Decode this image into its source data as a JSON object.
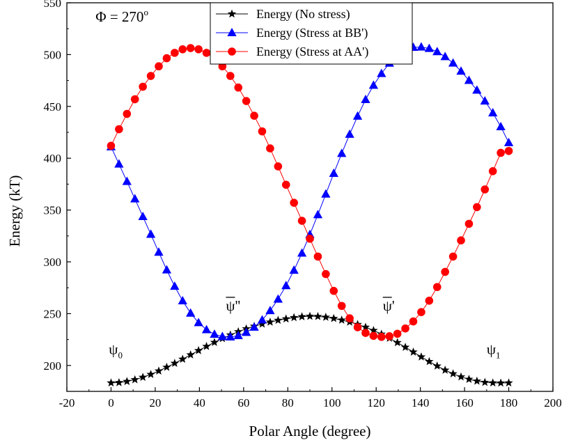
{
  "chart_data": {
    "type": "line",
    "title": "",
    "xlabel": "Polar Angle (degree)",
    "ylabel": "Energy (kT)",
    "xlim": [
      -20,
      200
    ],
    "ylim": [
      175,
      550
    ],
    "xticks": [
      -20,
      0,
      20,
      40,
      60,
      80,
      100,
      120,
      140,
      160,
      180,
      200
    ],
    "yticks": [
      200,
      250,
      300,
      350,
      400,
      450,
      500,
      550
    ],
    "legend_position": "top-center",
    "series": [
      {
        "name": "Energy (No stress)",
        "marker": "star",
        "color": "#000000",
        "x": [
          0,
          3.6,
          7.2,
          10.8,
          14.4,
          18,
          21.6,
          25.2,
          28.8,
          32.4,
          36,
          39.6,
          43.2,
          46.8,
          50.4,
          54,
          57.6,
          61.2,
          64.8,
          68.4,
          72,
          75.6,
          79.2,
          82.8,
          86.4,
          90,
          93.6,
          97.2,
          100.8,
          104.4,
          108,
          111.6,
          115.2,
          118.8,
          122.4,
          126,
          129.6,
          133.2,
          136.8,
          140.4,
          144,
          147.6,
          151.2,
          154.8,
          158.4,
          162,
          165.6,
          169.2,
          172.8,
          176.4,
          180
        ],
        "y": [
          183.2,
          183.5,
          184.6,
          186.3,
          188.6,
          191.4,
          194.7,
          198.3,
          202.1,
          206.1,
          210.3,
          214.4,
          218.4,
          222.3,
          226.0,
          229.5,
          232.6,
          235.4,
          237.9,
          240.0,
          241.9,
          243.6,
          245.0,
          246.2,
          247.1,
          247.5,
          247.3,
          246.6,
          245.4,
          243.8,
          241.9,
          239.6,
          236.9,
          233.8,
          230.3,
          226.3,
          222.1,
          217.6,
          213.0,
          208.3,
          203.8,
          199.5,
          195.5,
          192.0,
          189.0,
          186.7,
          184.9,
          183.7,
          183.2,
          183.1,
          183.2
        ]
      },
      {
        "name": "Energy (Stress at BB')",
        "marker": "triangle",
        "color": "#0000ff",
        "x": [
          0,
          3.6,
          7.2,
          10.8,
          14.4,
          18,
          21.6,
          25.2,
          28.8,
          32.4,
          36,
          39.6,
          43.2,
          46.8,
          50.4,
          54,
          57.6,
          61.2,
          64.8,
          68.4,
          72,
          75.6,
          79.2,
          82.8,
          86.4,
          90,
          93.6,
          97.2,
          100.8,
          104.4,
          108,
          111.6,
          115.2,
          118.8,
          122.4,
          126,
          129.6,
          133.2,
          136.8,
          140.4,
          144,
          147.6,
          151.2,
          154.8,
          158.4,
          162,
          165.6,
          169.2,
          172.8,
          176.4,
          180
        ],
        "y": [
          411,
          394.4,
          377.6,
          360.8,
          343.7,
          326.6,
          309.3,
          292.2,
          276.4,
          262.4,
          250.5,
          241.3,
          234.5,
          230.1,
          227.9,
          227.5,
          228.8,
          231.9,
          236.9,
          243.9,
          252.9,
          264.0,
          277.0,
          291.9,
          308.4,
          326.4,
          345.5,
          365.4,
          385.4,
          404.6,
          423.1,
          440.6,
          456.6,
          470.4,
          481.7,
          491.7,
          499.3,
          504.4,
          507.0,
          507.3,
          505.9,
          502.8,
          498.0,
          491.8,
          484.0,
          475.1,
          465.7,
          455.2,
          443.8,
          430.4,
          415.0
        ]
      },
      {
        "name": "Energy (Stress at AA')",
        "marker": "circle",
        "color": "#ff0000",
        "x": [
          0,
          3.6,
          7.2,
          10.8,
          14.4,
          18,
          21.6,
          25.2,
          28.8,
          32.4,
          36,
          39.6,
          43.2,
          46.8,
          50.4,
          54,
          57.6,
          61.2,
          64.8,
          68.4,
          72,
          75.6,
          79.2,
          82.8,
          86.4,
          90,
          93.6,
          97.2,
          100.8,
          104.4,
          108,
          111.6,
          115.2,
          118.8,
          122.4,
          126,
          129.6,
          133.2,
          136.8,
          140.4,
          144,
          147.6,
          151.2,
          154.8,
          158.4,
          162,
          165.6,
          169.2,
          172.8,
          176.4,
          180
        ],
        "y": [
          412,
          428,
          442.8,
          456.9,
          469,
          479.4,
          488.7,
          496.5,
          501.7,
          505.1,
          506.3,
          505.1,
          501.7,
          496.5,
          488.7,
          479.4,
          468.2,
          455.2,
          441.0,
          425.9,
          409.5,
          392.1,
          374.4,
          357.0,
          339.6,
          322.3,
          305.1,
          288.2,
          272.0,
          257.5,
          245.5,
          236.9,
          231.4,
          228.6,
          227.6,
          228.2,
          230.6,
          235.7,
          242.5,
          251.5,
          262.5,
          275.7,
          290.3,
          305.1,
          320.7,
          336.7,
          352.8,
          369.9,
          387.5,
          405.2,
          407.0
        ]
      }
    ],
    "annotations": [
      {
        "text": "Φ = 270",
        "sup": "o",
        "x": -7,
        "y": 532
      },
      {
        "text": "ψ",
        "sub": "0",
        "x": -1,
        "y": 211
      },
      {
        "text": "ψ",
        "sub": "1",
        "x": 170,
        "y": 211
      },
      {
        "text": "ψ''",
        "overline": true,
        "x": 52,
        "y": 253
      },
      {
        "text": "ψ'",
        "overline": true,
        "x": 123,
        "y": 253
      }
    ]
  }
}
